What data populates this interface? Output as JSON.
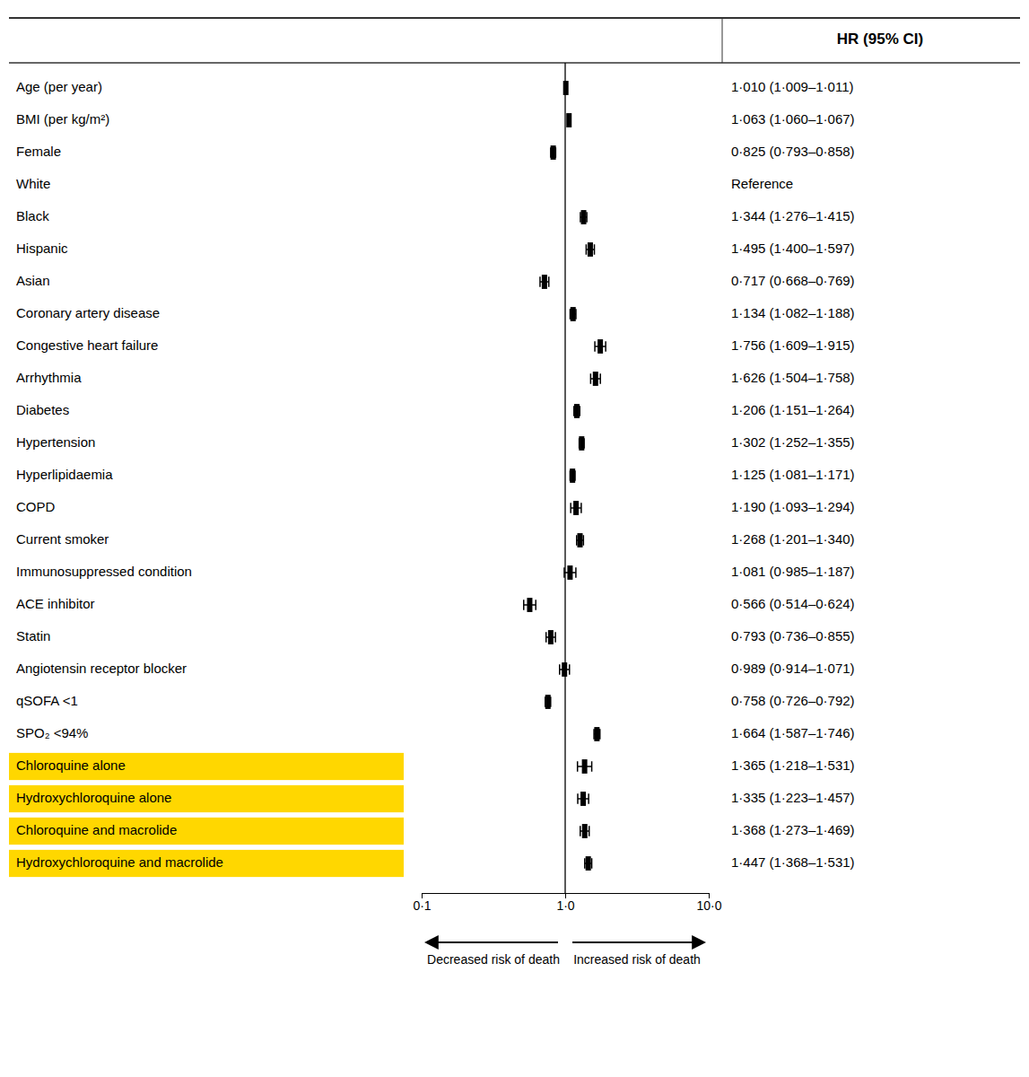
{
  "chart_data": {
    "type": "forest",
    "orientation": "horizontal",
    "log": "x",
    "grid": false,
    "data_labels": true,
    "color": "#000000",
    "categories": [
      "Age (per year)",
      "BMI (per kg/m²)",
      "Female",
      "White",
      "Black",
      "Hispanic",
      "Asian",
      "Coronary artery disease",
      "Congestive heart failure",
      "Arrhythmia",
      "Diabetes",
      "Hypertension",
      "Hyperlipidaemia",
      "COPD",
      "Current smoker",
      "Immunosuppressed condition",
      "ACE inhibitor",
      "Statin",
      "Angiotensin receptor blocker",
      "qSOFA <1",
      "SPO₂ <94%",
      "Chloroquine alone",
      "Hydroxychloroquine alone",
      "Chloroquine and macrolide",
      "Hydroxychloroquine and macrolide"
    ],
    "values": [
      1.01,
      1.063,
      0.825,
      null,
      1.344,
      1.495,
      0.717,
      1.134,
      1.756,
      1.626,
      1.206,
      1.302,
      1.125,
      1.19,
      1.268,
      1.081,
      0.566,
      0.793,
      0.989,
      0.758,
      1.664,
      1.365,
      1.335,
      1.368,
      1.447
    ],
    "lower": [
      1.009,
      1.06,
      0.793,
      null,
      1.276,
      1.4,
      0.668,
      1.082,
      1.609,
      1.504,
      1.151,
      1.252,
      1.081,
      1.093,
      1.201,
      0.985,
      0.514,
      0.736,
      0.914,
      0.726,
      1.587,
      1.218,
      1.223,
      1.273,
      1.368
    ],
    "upper": [
      1.011,
      1.067,
      0.858,
      null,
      1.415,
      1.597,
      0.769,
      1.188,
      1.915,
      1.758,
      1.264,
      1.355,
      1.171,
      1.294,
      1.34,
      1.187,
      0.624,
      0.855,
      1.071,
      0.792,
      1.746,
      1.531,
      1.457,
      1.469,
      1.531
    ],
    "value_labels": [
      "1·010 (1·009–1·011)",
      "1·063 (1·060–1·067)",
      "0·825 (0·793–0·858)",
      "Reference",
      "1·344 (1·276–1·415)",
      "1·495 (1·400–1·597)",
      "0·717 (0·668–0·769)",
      "1·134 (1·082–1·188)",
      "1·756 (1·609–1·915)",
      "1·626 (1·504–1·758)",
      "1·206 (1·151–1·264)",
      "1·302 (1·252–1·355)",
      "1·125 (1·081–1·171)",
      "1·190 (1·093–1·294)",
      "1·268 (1·201–1·340)",
      "1·081 (0·985–1·187)",
      "0·566 (0·514–0·624)",
      "0·793 (0·736–0·855)",
      "0·989 (0·914–1·071)",
      "0·758 (0·726–0·792)",
      "1·664 (1·587–1·746)",
      "1·365 (1·218–1·531)",
      "1·335 (1·223–1·457)",
      "1·368 (1·273–1·469)",
      "1·447 (1·368–1·531)"
    ],
    "highlight": [
      false,
      false,
      false,
      false,
      false,
      false,
      false,
      false,
      false,
      false,
      false,
      false,
      false,
      false,
      false,
      false,
      false,
      false,
      false,
      false,
      false,
      true,
      true,
      true,
      true
    ],
    "highlight_color": "#FFD700",
    "reference_line": 1.0,
    "xlim": [
      0.1,
      10.0
    ],
    "xticks": [
      {
        "value": 0.1,
        "label": "0·1"
      },
      {
        "value": 1.0,
        "label": "1·0"
      },
      {
        "value": 10.0,
        "label": "10·0"
      }
    ],
    "annotations": [
      "HR (95% CI)",
      "Decreased risk of death",
      "Increased risk of death"
    ]
  }
}
